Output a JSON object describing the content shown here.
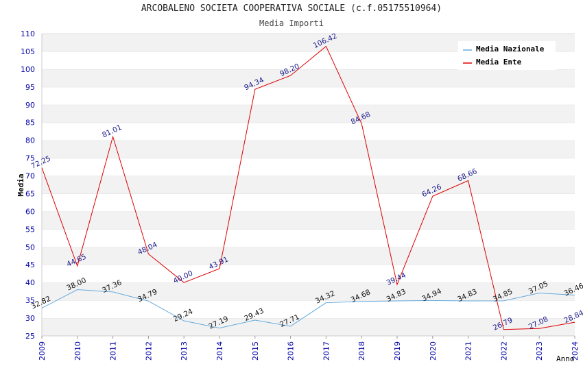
{
  "header": {
    "title": "ARCOBALENO SOCIETA COOPERATIVA SOCIALE (c.f.05175510964)",
    "subtitle": "Media Importi"
  },
  "chart_data": {
    "type": "line",
    "title": "ARCOBALENO SOCIETA COOPERATIVA SOCIALE (c.f.05175510964)",
    "subtitle": "Media Importi",
    "xlabel": "Anno",
    "ylabel": "Media",
    "ylim": [
      25,
      110
    ],
    "ytick_step": 5,
    "grid": "horizontal bands",
    "legend_position": "top-right",
    "x": [
      "2009",
      "2010",
      "2011",
      "2012",
      "2013",
      "2014",
      "2015",
      "2016",
      "2017",
      "2018",
      "2019",
      "2020",
      "2021",
      "2022",
      "2023",
      "2024"
    ],
    "series": [
      {
        "name": "Media Nazionale",
        "color": "#66aadd",
        "values": [
          32.82,
          38.0,
          37.36,
          34.79,
          29.24,
          27.19,
          29.43,
          27.71,
          34.32,
          34.68,
          34.83,
          34.94,
          34.83,
          34.85,
          37.05,
          36.46
        ],
        "labels": [
          "32.82",
          "38.00",
          "37.36",
          "34.79",
          "29.24",
          "27.19",
          "29.43",
          "27.71",
          "34.32",
          "34.68",
          "34.83",
          "34.94",
          "34.83",
          "34.85",
          "37.05",
          "36.46"
        ]
      },
      {
        "name": "Media Ente",
        "color": "#dd0000",
        "values": [
          72.25,
          44.65,
          81.01,
          48.04,
          40.0,
          43.91,
          94.34,
          98.2,
          106.42,
          84.68,
          39.44,
          64.26,
          68.66,
          26.79,
          27.08,
          28.84
        ],
        "labels": [
          "72.25",
          "44.65",
          "81.01",
          "48.04",
          "40.00",
          "43.91",
          "94.34",
          "98.20",
          "106.42",
          "84.68",
          "39.44",
          "64.26",
          "68.66",
          "26.79",
          "27.08",
          "28.84"
        ]
      }
    ]
  }
}
